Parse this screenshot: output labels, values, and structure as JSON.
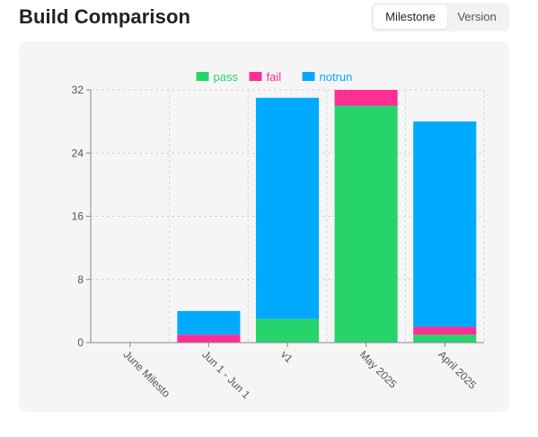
{
  "header": {
    "title": "Build Comparison"
  },
  "toggle": {
    "options": [
      {
        "label": "Milestone",
        "active": true
      },
      {
        "label": "Version",
        "active": false
      }
    ]
  },
  "chart_data": {
    "type": "bar",
    "stacked": true,
    "categories": [
      "June Milesto",
      "Jun 1 - Jun 1",
      "v1",
      "May 2025",
      "April 2025"
    ],
    "series": [
      {
        "name": "pass",
        "color": "#27d46b",
        "values": [
          0,
          0,
          3,
          30,
          1
        ]
      },
      {
        "name": "fail",
        "color": "#ff2e93",
        "values": [
          0,
          1,
          0,
          2,
          1
        ]
      },
      {
        "name": "notrun",
        "color": "#00aaff",
        "values": [
          0,
          3,
          28,
          0,
          26
        ]
      }
    ],
    "ylim": [
      0,
      32
    ],
    "yticks": [
      0,
      8,
      16,
      24,
      32
    ],
    "grid": true,
    "legend": "top"
  }
}
